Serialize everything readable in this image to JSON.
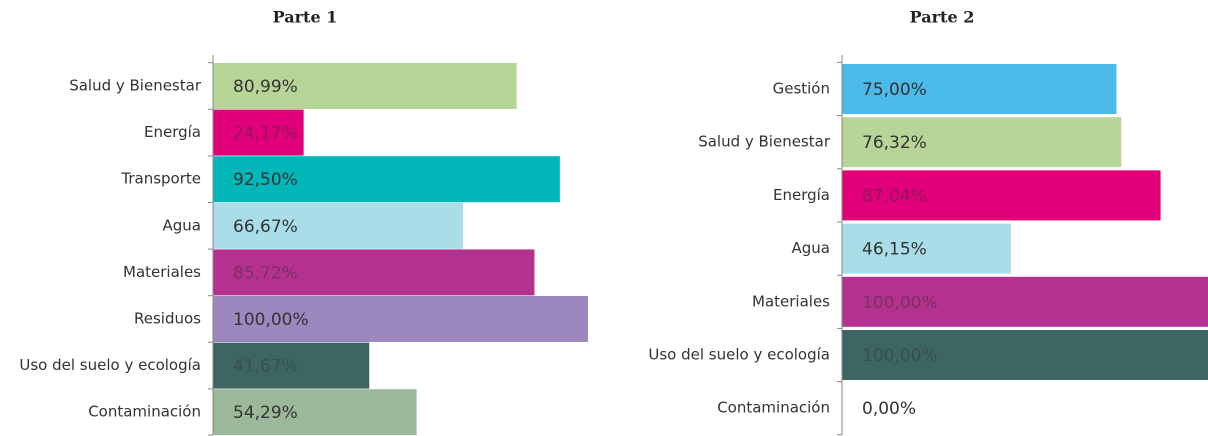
{
  "chart_data": [
    {
      "type": "bar",
      "orientation": "horizontal",
      "title": "Parte 1",
      "categories": [
        "Salud y Bienestar",
        "Energía",
        "Transporte",
        "Agua",
        "Materiales",
        "Residuos",
        "Uso del suelo y ecología",
        "Contaminación"
      ],
      "values": [
        80.99,
        24.17,
        92.5,
        66.67,
        85.72,
        100,
        41.67,
        54.29
      ],
      "value_labels": [
        "80,99%",
        "24,17%",
        "92,50%",
        "66,67%",
        "85,72%",
        "100,00%",
        "41,67%",
        "54,29%"
      ],
      "colors": [
        "#b8d598",
        "#e2007a",
        "#00b6b8",
        "#a9dde8",
        "#b5318f",
        "#9d87bf",
        "#3d6663",
        "#9bb89a"
      ],
      "xlim": [
        0,
        100
      ]
    },
    {
      "type": "bar",
      "orientation": "horizontal",
      "title": "Parte 2",
      "categories": [
        "Gestión",
        "Salud y Bienestar",
        "Energía",
        "Agua",
        "Materiales",
        "Uso del suelo y ecología",
        "Contaminación"
      ],
      "values": [
        75,
        76.32,
        87.04,
        46.15,
        100,
        100,
        0
      ],
      "value_labels": [
        "75,00%",
        "76,32%",
        "87,04%",
        "46,15%",
        "100,00%",
        "100,00%",
        "0,00%"
      ],
      "colors": [
        "#4bbae9",
        "#b8d598",
        "#e2007a",
        "#a9dde8",
        "#b5318f",
        "#3d6663",
        "#9bb89a"
      ],
      "xlim": [
        0,
        100
      ]
    }
  ]
}
